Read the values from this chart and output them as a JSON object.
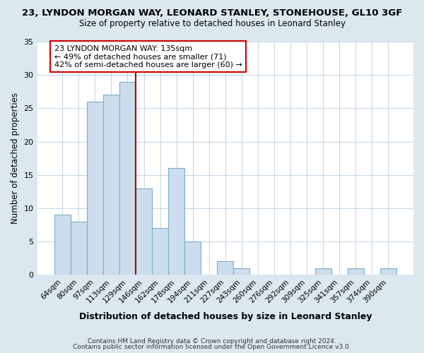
{
  "title": "23, LYNDON MORGAN WAY, LEONARD STANLEY, STONEHOUSE, GL10 3GF",
  "subtitle": "Size of property relative to detached houses in Leonard Stanley",
  "xlabel": "Distribution of detached houses by size in Leonard Stanley",
  "ylabel": "Number of detached properties",
  "bin_labels": [
    "64sqm",
    "80sqm",
    "97sqm",
    "113sqm",
    "129sqm",
    "146sqm",
    "162sqm",
    "178sqm",
    "194sqm",
    "211sqm",
    "227sqm",
    "243sqm",
    "260sqm",
    "276sqm",
    "292sqm",
    "309sqm",
    "325sqm",
    "341sqm",
    "357sqm",
    "374sqm",
    "390sqm"
  ],
  "bar_values": [
    9,
    8,
    26,
    27,
    29,
    13,
    7,
    16,
    5,
    0,
    2,
    1,
    0,
    0,
    0,
    0,
    1,
    0,
    1,
    0,
    1
  ],
  "bar_color": "#ccdded",
  "bar_edge_color": "#7aafc8",
  "red_line_color": "#aa0000",
  "annotation_line0": "23 LYNDON MORGAN WAY: 135sqm",
  "annotation_line1": "← 49% of detached houses are smaller (71)",
  "annotation_line2": "42% of semi-detached houses are larger (60) →",
  "annotation_box_color": "#ffffff",
  "annotation_box_edge_color": "#cc0000",
  "ylim": [
    0,
    35
  ],
  "yticks": [
    0,
    5,
    10,
    15,
    20,
    25,
    30,
    35
  ],
  "footer1": "Contains HM Land Registry data © Crown copyright and database right 2024.",
  "footer2": "Contains public sector information licensed under the Open Government Licence v3.0.",
  "background_color": "#dce8f0",
  "plot_background_color": "#ffffff",
  "grid_color": "#b8cfe0"
}
